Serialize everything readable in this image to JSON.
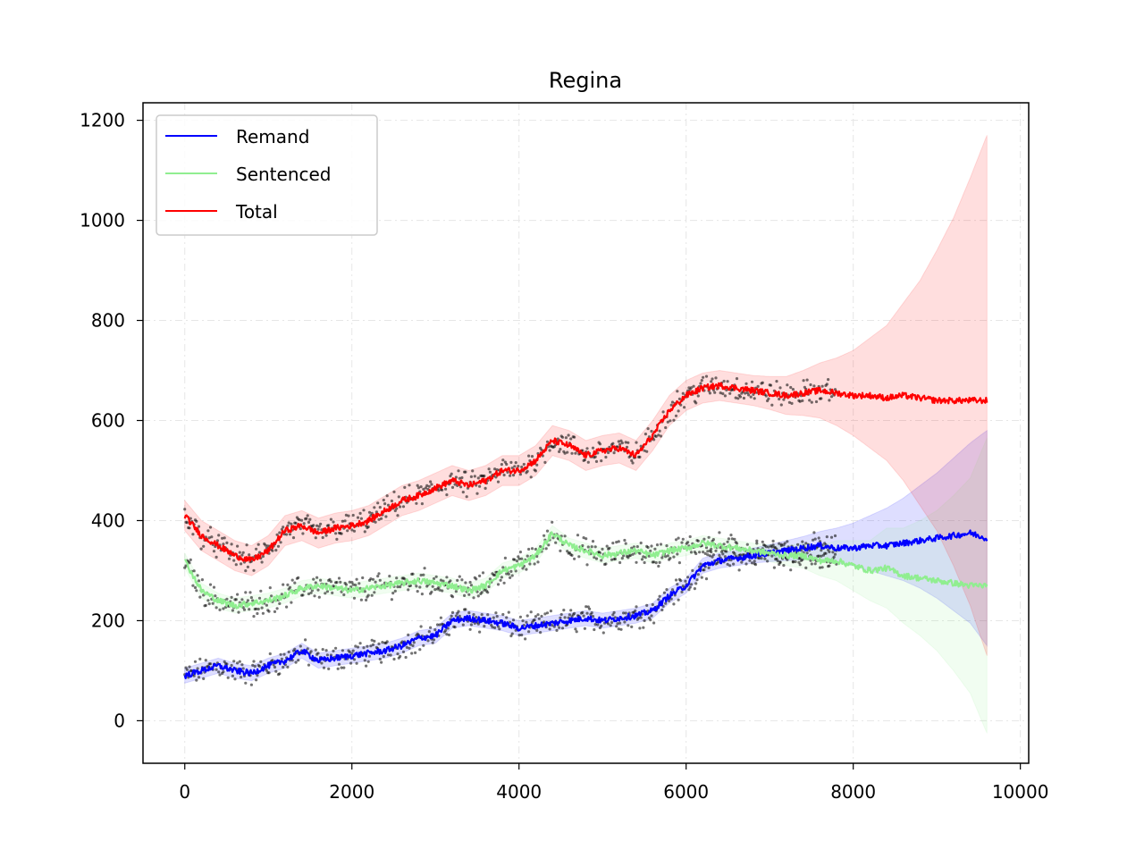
{
  "chart_data": {
    "type": "line",
    "title": "Regina",
    "xlabel": "",
    "ylabel": "",
    "xlim": [
      -500,
      10100
    ],
    "ylim": [
      -85,
      1235
    ],
    "x_ticks": [
      0,
      2000,
      4000,
      6000,
      8000,
      10000
    ],
    "x_tick_labels": [
      "0",
      "2000",
      "4000",
      "6000",
      "8000",
      "10000"
    ],
    "y_ticks": [
      0,
      200,
      400,
      600,
      800,
      1000,
      1200
    ],
    "y_tick_labels": [
      "0",
      "200",
      "400",
      "600",
      "800",
      "1000",
      "1200"
    ],
    "grid": true,
    "legend_position": "upper-left",
    "colors": {
      "remand": "#0000ff",
      "sentenced": "#90ee90",
      "total": "#ff0000",
      "observed": "#000000"
    },
    "x": [
      0,
      200,
      400,
      600,
      800,
      1000,
      1200,
      1400,
      1600,
      1800,
      2000,
      2200,
      2400,
      2600,
      2800,
      3000,
      3200,
      3400,
      3600,
      3800,
      4000,
      4200,
      4400,
      4600,
      4800,
      5000,
      5200,
      5400,
      5600,
      5800,
      6000,
      6200,
      6400,
      6600,
      6800,
      7000,
      7200,
      7400,
      7600,
      7800,
      8000,
      8200,
      8400,
      8600,
      8800,
      9000,
      9200,
      9400,
      9600
    ],
    "series": [
      {
        "name": "Remand",
        "color": "#0000ff",
        "values": [
          90,
          100,
          110,
          100,
          95,
          110,
          120,
          140,
          120,
          125,
          130,
          135,
          140,
          150,
          165,
          170,
          200,
          205,
          200,
          195,
          185,
          190,
          195,
          200,
          205,
          200,
          205,
          210,
          220,
          250,
          270,
          310,
          320,
          325,
          330,
          335,
          340,
          345,
          350,
          345,
          345,
          350,
          350,
          355,
          360,
          365,
          370,
          375,
          365
        ],
        "band": {
          "lower": [
            75,
            85,
            95,
            85,
            80,
            95,
            105,
            125,
            105,
            110,
            115,
            120,
            125,
            135,
            150,
            155,
            185,
            190,
            185,
            180,
            170,
            175,
            180,
            185,
            190,
            185,
            190,
            195,
            205,
            235,
            255,
            295,
            305,
            310,
            315,
            318,
            320,
            322,
            322,
            315,
            310,
            300,
            290,
            280,
            265,
            245,
            220,
            195,
            150
          ],
          "upper": [
            105,
            115,
            125,
            115,
            110,
            125,
            135,
            155,
            135,
            140,
            145,
            150,
            155,
            165,
            180,
            185,
            215,
            220,
            215,
            210,
            200,
            205,
            210,
            215,
            220,
            215,
            220,
            225,
            235,
            265,
            285,
            325,
            335,
            340,
            345,
            352,
            360,
            368,
            378,
            385,
            395,
            410,
            425,
            445,
            470,
            495,
            525,
            555,
            580
          ]
        }
      },
      {
        "name": "Sentenced",
        "color": "#90ee90",
        "values": [
          320,
          260,
          240,
          230,
          235,
          240,
          250,
          265,
          270,
          265,
          260,
          265,
          270,
          275,
          280,
          275,
          270,
          260,
          270,
          300,
          310,
          330,
          375,
          350,
          340,
          330,
          335,
          340,
          330,
          340,
          345,
          355,
          350,
          345,
          340,
          335,
          330,
          330,
          320,
          320,
          310,
          300,
          305,
          290,
          285,
          280,
          275,
          270,
          270
        ],
        "band": {
          "lower": [
            305,
            245,
            225,
            215,
            220,
            225,
            235,
            250,
            255,
            250,
            245,
            250,
            255,
            260,
            265,
            260,
            255,
            245,
            255,
            285,
            295,
            315,
            360,
            335,
            325,
            315,
            320,
            325,
            315,
            325,
            330,
            340,
            335,
            330,
            325,
            318,
            310,
            305,
            290,
            280,
            260,
            240,
            225,
            195,
            170,
            140,
            100,
            55,
            -25
          ],
          "upper": [
            335,
            275,
            255,
            245,
            250,
            255,
            265,
            280,
            285,
            280,
            275,
            280,
            285,
            290,
            295,
            290,
            285,
            275,
            285,
            315,
            325,
            345,
            390,
            365,
            355,
            345,
            350,
            355,
            345,
            355,
            360,
            370,
            365,
            360,
            355,
            352,
            350,
            355,
            350,
            360,
            360,
            360,
            385,
            385,
            400,
            420,
            450,
            485,
            565
          ]
        }
      },
      {
        "name": "Total",
        "color": "#ff0000",
        "values": [
          410,
          370,
          350,
          330,
          320,
          340,
          380,
          390,
          375,
          385,
          390,
          400,
          420,
          440,
          450,
          465,
          480,
          470,
          480,
          500,
          500,
          520,
          560,
          550,
          530,
          540,
          545,
          530,
          570,
          620,
          650,
          665,
          670,
          665,
          660,
          655,
          650,
          655,
          660,
          655,
          650,
          650,
          645,
          650,
          645,
          640,
          640,
          640,
          640
        ],
        "band": {
          "lower": [
            380,
            340,
            320,
            300,
            290,
            310,
            350,
            360,
            345,
            355,
            360,
            370,
            390,
            410,
            420,
            435,
            450,
            440,
            450,
            470,
            470,
            490,
            530,
            520,
            500,
            510,
            515,
            500,
            540,
            590,
            620,
            635,
            640,
            635,
            630,
            622,
            612,
            610,
            605,
            590,
            570,
            545,
            520,
            480,
            430,
            380,
            310,
            230,
            130
          ],
          "upper": [
            440,
            400,
            380,
            360,
            350,
            370,
            410,
            420,
            405,
            415,
            420,
            430,
            450,
            470,
            480,
            495,
            510,
            500,
            510,
            530,
            530,
            550,
            590,
            580,
            560,
            570,
            575,
            560,
            600,
            650,
            680,
            695,
            700,
            695,
            690,
            688,
            688,
            700,
            715,
            725,
            740,
            765,
            790,
            835,
            880,
            940,
            1005,
            1085,
            1170
          ]
        }
      }
    ],
    "observed_points": {
      "x_range": [
        0,
        7800
      ],
      "groups": [
        "Remand",
        "Sentenced",
        "Total"
      ]
    }
  }
}
